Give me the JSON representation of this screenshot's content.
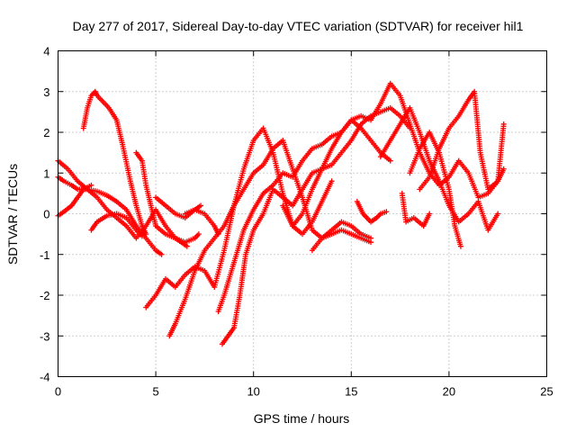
{
  "chart_data": {
    "type": "scatter",
    "title": "Day 277 of 2017, Sidereal Day-to-day VTEC variation (SDTVAR) for receiver hil1",
    "xlabel": "GPS time / hours",
    "ylabel": "SDTVAR / TECUs",
    "xlim": [
      0,
      25
    ],
    "ylim": [
      -4,
      4
    ],
    "xticks": [
      "0",
      "5",
      "10",
      "15",
      "20",
      "25"
    ],
    "yticks": [
      "-4",
      "-3",
      "-2",
      "-1",
      "0",
      "1",
      "2",
      "3",
      "4"
    ],
    "grid": true,
    "marker": "plus",
    "color": "#ff0000",
    "series": [
      {
        "x": [
          0.0,
          0.5,
          1.0,
          1.5,
          2.0,
          2.5,
          3.0,
          3.5,
          4.0,
          4.5,
          5.0,
          5.5,
          6.0,
          6.5,
          7.0,
          7.2
        ],
        "y": [
          1.3,
          1.1,
          0.8,
          0.6,
          0.4,
          0.1,
          -0.1,
          -0.3,
          -0.6,
          -0.3,
          0.1,
          -0.3,
          -0.6,
          -0.7,
          -0.6,
          -0.5
        ]
      },
      {
        "x": [
          0.0,
          0.3,
          0.7,
          1.0,
          1.5,
          2.0,
          2.5,
          3.0,
          3.5,
          4.0,
          4.5,
          5.0,
          5.3
        ],
        "y": [
          0.9,
          0.8,
          0.7,
          0.6,
          0.6,
          0.55,
          0.45,
          0.3,
          0.1,
          -0.3,
          -0.6,
          -0.9,
          -1.0
        ]
      },
      {
        "x": [
          0.0,
          0.3,
          0.7,
          1.0,
          1.3,
          1.7
        ],
        "y": [
          -0.05,
          0.05,
          0.2,
          0.4,
          0.6,
          0.7
        ]
      },
      {
        "x": [
          1.3,
          1.5,
          1.7,
          1.9,
          2.0,
          2.3,
          2.6,
          3.0,
          3.3,
          3.7,
          4.0,
          4.3,
          4.5
        ],
        "y": [
          2.1,
          2.6,
          2.9,
          3.0,
          2.9,
          2.75,
          2.6,
          2.3,
          1.7,
          0.8,
          0.2,
          -0.3,
          -0.5
        ]
      },
      {
        "x": [
          1.7,
          2.0,
          2.5,
          3.0,
          3.5,
          4.0,
          4.3
        ],
        "y": [
          -0.4,
          -0.2,
          -0.05,
          0.0,
          -0.1,
          -0.4,
          -0.55
        ]
      },
      {
        "x": [
          4.0,
          4.3,
          4.5,
          4.8,
          5.0,
          5.5,
          6.0,
          6.3,
          6.6
        ],
        "y": [
          1.5,
          1.3,
          0.7,
          0.1,
          -0.3,
          -0.5,
          -0.6,
          -0.7,
          -0.8
        ]
      },
      {
        "x": [
          4.5,
          5.0,
          5.5,
          6.0,
          6.5,
          7.0,
          7.5,
          8.0,
          8.5,
          9.0,
          9.5,
          10.0,
          10.5,
          11.0,
          11.5,
          12.0,
          12.5,
          13.0,
          13.5,
          14.0
        ],
        "y": [
          -2.3,
          -2.0,
          -1.6,
          -1.8,
          -1.5,
          -1.3,
          -1.4,
          -1.8,
          -0.9,
          0.2,
          1.1,
          1.8,
          2.1,
          1.5,
          0.5,
          -0.3,
          -0.5,
          -0.2,
          0.3,
          0.8
        ]
      },
      {
        "x": [
          5.0,
          5.5,
          6.0,
          6.5,
          7.0,
          7.3
        ],
        "y": [
          0.4,
          0.2,
          0.0,
          -0.1,
          0.1,
          0.2
        ]
      },
      {
        "x": [
          5.7,
          6.0,
          6.5,
          7.0,
          7.5,
          8.0,
          8.5,
          9.0,
          9.5,
          10.0,
          10.5,
          11.0,
          11.5,
          12.0,
          12.5,
          13.0,
          13.5,
          14.0,
          14.5,
          15.0,
          15.5,
          16.0
        ],
        "y": [
          -3.0,
          -2.7,
          -2.1,
          -1.4,
          -0.9,
          -0.6,
          -0.3,
          0.2,
          0.6,
          1.0,
          1.2,
          1.6,
          1.8,
          1.1,
          0.4,
          -0.4,
          -0.6,
          -0.5,
          -0.4,
          -0.5,
          -0.6,
          -0.7
        ]
      },
      {
        "x": [
          6.5,
          7.0,
          7.5,
          8.0,
          8.2
        ],
        "y": [
          0.0,
          0.1,
          0.0,
          -0.3,
          -0.5
        ]
      },
      {
        "x": [
          8.2,
          8.5,
          9.0,
          9.5,
          10.0,
          10.5,
          11.0,
          11.5,
          12.0,
          12.5,
          13.0,
          13.5,
          14.0,
          14.5,
          15.0,
          15.5,
          16.0,
          16.5,
          17.0
        ],
        "y": [
          -2.4,
          -2.0,
          -1.2,
          -0.4,
          0.1,
          0.5,
          0.7,
          1.0,
          0.9,
          1.3,
          1.6,
          1.7,
          1.9,
          2.0,
          2.3,
          2.1,
          1.8,
          1.5,
          1.3
        ]
      },
      {
        "x": [
          8.4,
          8.7,
          9.0,
          9.3,
          9.6,
          10.0,
          10.5,
          11.0,
          11.5,
          12.0,
          12.5,
          13.0,
          13.5,
          14.0,
          14.5,
          15.0,
          15.5,
          16.0,
          16.5,
          17.0,
          17.5,
          18.0
        ],
        "y": [
          -3.2,
          -3.0,
          -2.8,
          -2.0,
          -1.0,
          -0.4,
          0.0,
          0.6,
          0.4,
          0.2,
          0.6,
          1.0,
          1.1,
          1.2,
          1.5,
          1.8,
          2.2,
          2.4,
          2.5,
          2.6,
          2.4,
          2.1
        ]
      },
      {
        "x": [
          11.5,
          12.0,
          12.5,
          13.0,
          13.5,
          14.0,
          14.5,
          15.0,
          15.5,
          16.0,
          16.5,
          17.0,
          17.5,
          18.0,
          18.5,
          19.0,
          19.5,
          20.0,
          20.5,
          21.0,
          21.5,
          22.0,
          22.5,
          22.8
        ],
        "y": [
          0.2,
          -0.3,
          0.0,
          0.6,
          1.1,
          1.6,
          2.0,
          2.3,
          2.4,
          2.3,
          2.7,
          3.2,
          2.9,
          2.2,
          1.5,
          1.0,
          0.7,
          0.9,
          1.3,
          1.0,
          0.4,
          0.5,
          0.8,
          2.2
        ]
      },
      {
        "x": [
          13.0,
          13.5,
          14.0,
          14.5,
          15.0,
          15.5,
          16.0
        ],
        "y": [
          -0.9,
          -0.6,
          -0.4,
          -0.2,
          -0.3,
          -0.5,
          -0.6
        ]
      },
      {
        "x": [
          15.3,
          15.6,
          16.0,
          16.3,
          16.5,
          16.8
        ],
        "y": [
          0.3,
          0.0,
          -0.2,
          -0.1,
          0.0,
          0.05
        ]
      },
      {
        "x": [
          16.5,
          17.0,
          17.5,
          18.0,
          18.5,
          19.0,
          19.5,
          20.0,
          20.5,
          21.0,
          21.5,
          22.0,
          22.5
        ],
        "y": [
          1.4,
          1.8,
          2.2,
          2.6,
          2.0,
          1.3,
          0.8,
          0.2,
          -0.2,
          0.0,
          0.3,
          -0.4,
          0.0
        ]
      },
      {
        "x": [
          18.0,
          18.5,
          19.0,
          19.5,
          20.0,
          20.3,
          20.6
        ],
        "y": [
          1.0,
          1.6,
          2.0,
          1.5,
          0.6,
          -0.3,
          -0.8
        ]
      },
      {
        "x": [
          18.5,
          19.0,
          19.5,
          20.0,
          20.5,
          21.0,
          21.3,
          21.6,
          22.0,
          22.5,
          22.8
        ],
        "y": [
          0.6,
          0.9,
          1.6,
          2.1,
          2.4,
          2.8,
          3.0,
          1.5,
          0.6,
          0.8,
          1.1
        ]
      },
      {
        "x": [
          17.6,
          17.8,
          18.2,
          18.7,
          19.0
        ],
        "y": [
          0.5,
          -0.2,
          -0.1,
          -0.3,
          0.0
        ]
      }
    ]
  }
}
